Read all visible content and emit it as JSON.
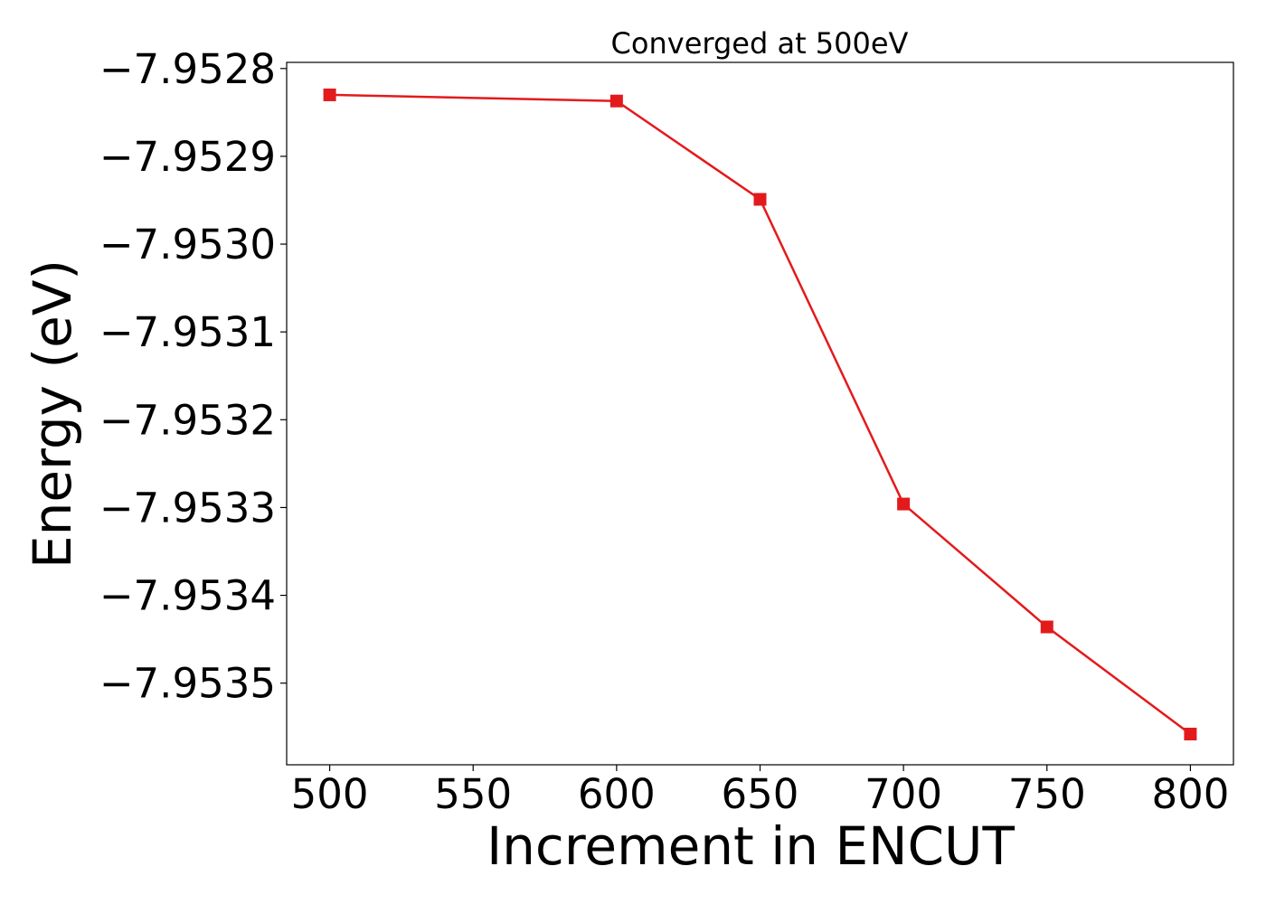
{
  "chart_data": {
    "type": "line",
    "title": "Converged at 500eV",
    "xlabel": "Increment in ENCUT",
    "ylabel": "Energy (eV)",
    "x": [
      500,
      600,
      650,
      700,
      750,
      800
    ],
    "series": [
      {
        "values": [
          -7.95283,
          -7.952837,
          -7.952949,
          -7.953296,
          -7.953436,
          -7.953558
        ],
        "color": "#e31a1c",
        "marker": "square"
      }
    ],
    "xlim": [
      485,
      815
    ],
    "ylim": [
      -7.953593,
      -7.952793
    ],
    "x_ticks": [
      500,
      550,
      600,
      650,
      700,
      750,
      800
    ],
    "x_tick_labels": [
      "500",
      "550",
      "600",
      "650",
      "700",
      "750",
      "800"
    ],
    "y_ticks": [
      -7.9528,
      -7.9529,
      -7.953,
      -7.9531,
      -7.9532,
      -7.9533,
      -7.9534,
      -7.9535
    ],
    "y_tick_labels": [
      "−7.9528",
      "−7.9529",
      "−7.9530",
      "−7.9531",
      "−7.9532",
      "−7.9533",
      "−7.9534",
      "−7.9535"
    ],
    "grid": false,
    "legend": "none"
  }
}
